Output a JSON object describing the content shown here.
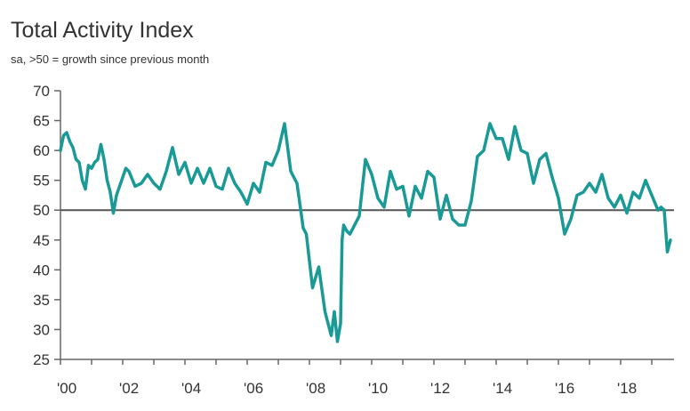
{
  "chart_data": {
    "type": "line",
    "title": "Total Activity Index",
    "subtitle": "sa, >50 = growth since previous month",
    "xlabel": "",
    "ylabel": "",
    "xlim": [
      2000,
      2019.6
    ],
    "ylim": [
      25,
      70
    ],
    "y_ticks": [
      70,
      65,
      60,
      55,
      50,
      45,
      40,
      35,
      30,
      25
    ],
    "x_ticks": [
      {
        "value": 2000,
        "label": "'00"
      },
      {
        "value": 2002,
        "label": "'02"
      },
      {
        "value": 2004,
        "label": "'04"
      },
      {
        "value": 2006,
        "label": "'06"
      },
      {
        "value": 2008,
        "label": "'08"
      },
      {
        "value": 2010,
        "label": "'10"
      },
      {
        "value": 2012,
        "label": "'12"
      },
      {
        "value": 2014,
        "label": "'14"
      },
      {
        "value": 2016,
        "label": "'16"
      },
      {
        "value": 2018,
        "label": "'18"
      }
    ],
    "reference_line": 50,
    "line_color": "#1a9a96",
    "series": [
      {
        "name": "Total Activity Index",
        "x": [
          2000.0,
          2000.1,
          2000.2,
          2000.3,
          2000.4,
          2000.5,
          2000.6,
          2000.7,
          2000.8,
          2000.9,
          2001.0,
          2001.1,
          2001.2,
          2001.3,
          2001.4,
          2001.5,
          2001.6,
          2001.7,
          2001.8,
          2001.9,
          2002.0,
          2002.1,
          2002.2,
          2002.4,
          2002.6,
          2002.8,
          2003.0,
          2003.2,
          2003.4,
          2003.6,
          2003.8,
          2004.0,
          2004.2,
          2004.4,
          2004.6,
          2004.8,
          2005.0,
          2005.2,
          2005.4,
          2005.6,
          2005.8,
          2006.0,
          2006.2,
          2006.4,
          2006.6,
          2006.8,
          2007.0,
          2007.2,
          2007.4,
          2007.6,
          2007.8,
          2007.9,
          2008.1,
          2008.3,
          2008.5,
          2008.7,
          2008.8,
          2008.9,
          2009.0,
          2009.05,
          2009.1,
          2009.2,
          2009.3,
          2009.4,
          2009.6,
          2009.8,
          2010.0,
          2010.2,
          2010.4,
          2010.6,
          2010.8,
          2011.0,
          2011.2,
          2011.4,
          2011.6,
          2011.8,
          2012.0,
          2012.2,
          2012.4,
          2012.6,
          2012.8,
          2013.0,
          2013.2,
          2013.4,
          2013.6,
          2013.8,
          2014.0,
          2014.2,
          2014.4,
          2014.6,
          2014.8,
          2015.0,
          2015.2,
          2015.4,
          2015.6,
          2015.8,
          2016.0,
          2016.2,
          2016.4,
          2016.6,
          2016.8,
          2017.0,
          2017.2,
          2017.4,
          2017.6,
          2017.8,
          2018.0,
          2018.2,
          2018.4,
          2018.6,
          2018.8,
          2019.0,
          2019.2,
          2019.3,
          2019.4,
          2019.5,
          2019.6
        ],
        "values": [
          60.0,
          62.5,
          63.0,
          61.5,
          60.5,
          58.5,
          58.0,
          55.0,
          53.5,
          57.5,
          57.0,
          58.0,
          58.5,
          61.0,
          58.5,
          55.0,
          53.0,
          49.5,
          52.5,
          54.0,
          55.5,
          57.0,
          56.5,
          54.0,
          54.5,
          56.0,
          54.5,
          53.5,
          56.5,
          60.5,
          56.0,
          58.0,
          54.5,
          57.0,
          54.5,
          57.0,
          54.0,
          53.5,
          57.0,
          54.5,
          53.0,
          51.0,
          54.5,
          53.0,
          58.0,
          57.5,
          60.0,
          64.5,
          56.5,
          54.5,
          47.0,
          46.0,
          37.0,
          40.5,
          33.0,
          29.0,
          33.0,
          28.0,
          31.0,
          45.0,
          47.5,
          46.5,
          46.0,
          47.0,
          49.0,
          58.5,
          56.0,
          52.0,
          50.5,
          56.5,
          53.5,
          54.0,
          49.0,
          54.0,
          52.0,
          56.5,
          55.5,
          48.5,
          52.5,
          48.5,
          47.5,
          47.5,
          51.5,
          59.0,
          60.0,
          64.5,
          62.0,
          62.0,
          58.5,
          64.0,
          60.0,
          59.5,
          54.5,
          58.5,
          59.5,
          55.5,
          52.0,
          46.0,
          48.5,
          52.5,
          53.0,
          54.5,
          53.0,
          56.0,
          52.0,
          50.5,
          52.5,
          49.5,
          53.0,
          52.0,
          55.0,
          52.5,
          50.0,
          50.5,
          50.0,
          43.0,
          45.0
        ]
      }
    ]
  }
}
